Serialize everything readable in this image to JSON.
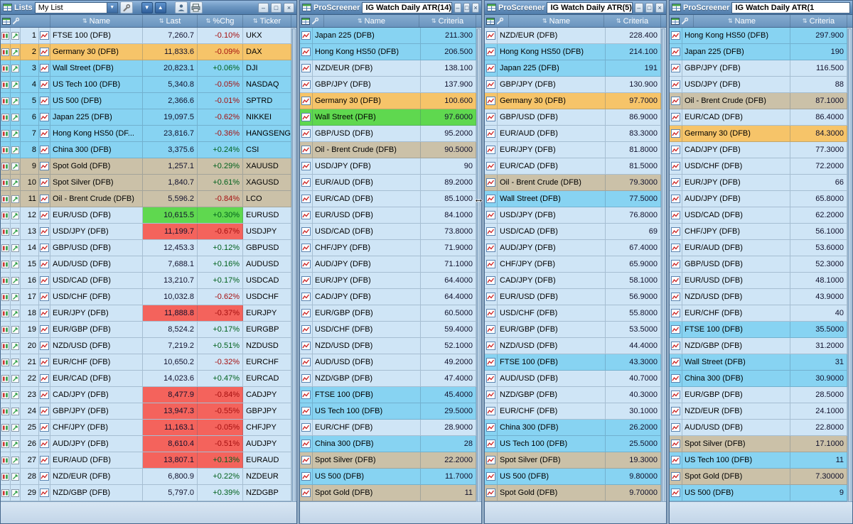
{
  "colors": {
    "idx": "#87d3f2",
    "fx": "#cfe5f6",
    "cm": "#cbc1a8",
    "sel": "#f6c469",
    "up": "#5fd84f",
    "down": "#f4635c",
    "pos": "#00611c",
    "neg": "#a50f0f"
  },
  "icons": {
    "chevron-down": "▼",
    "sort": "⇅",
    "arrow-down": "▼",
    "arrow-up": "▲",
    "minimize": "–",
    "maximize": "□",
    "close": "×",
    "resize-cursor": "↔"
  },
  "lists": {
    "title": "Lists",
    "selected_list": "My List",
    "columns": [
      "Name",
      "Last",
      "%Chg",
      "Ticker"
    ],
    "rows": [
      {
        "n": "1",
        "name": "FTSE 100 (DFB)",
        "last": "7,260.7",
        "chg": "-0.10%",
        "tick": "UKX",
        "cat": "fx",
        "fl": ""
      },
      {
        "n": "2",
        "name": "Germany 30 (DFB)",
        "last": "11,833.6",
        "chg": "-0.09%",
        "tick": "DAX",
        "cat": "sel",
        "fl": ""
      },
      {
        "n": "3",
        "name": "Wall Street (DFB)",
        "last": "20,823.1",
        "chg": "+0.06%",
        "tick": "DJI",
        "cat": "idx",
        "fl": ""
      },
      {
        "n": "4",
        "name": "US Tech 100 (DFB)",
        "last": "5,340.8",
        "chg": "-0.05%",
        "tick": "NASDAQ",
        "cat": "idx",
        "fl": ""
      },
      {
        "n": "5",
        "name": "US 500 (DFB)",
        "last": "2,366.6",
        "chg": "-0.01%",
        "tick": "SPTRD",
        "cat": "idx",
        "fl": ""
      },
      {
        "n": "6",
        "name": "Japan 225 (DFB)",
        "last": "19,097.5",
        "chg": "-0.62%",
        "tick": "NIKKEI",
        "cat": "idx",
        "fl": ""
      },
      {
        "n": "7",
        "name": "Hong Kong HS50 (DF...",
        "last": "23,816.7",
        "chg": "-0.36%",
        "tick": "HANGSENG",
        "cat": "idx",
        "fl": ""
      },
      {
        "n": "8",
        "name": "China 300 (DFB)",
        "last": "3,375.6",
        "chg": "+0.24%",
        "tick": "CSI",
        "cat": "idx",
        "fl": ""
      },
      {
        "n": "9",
        "name": "Spot Gold (DFB)",
        "last": "1,257.1",
        "chg": "+0.29%",
        "tick": "XAUUSD",
        "cat": "cm",
        "fl": ""
      },
      {
        "n": "10",
        "name": "Spot Silver (DFB)",
        "last": "1,840.7",
        "chg": "+0.61%",
        "tick": "XAGUSD",
        "cat": "cm",
        "fl": ""
      },
      {
        "n": "11",
        "name": "Oil - Brent Crude (DFB)",
        "last": "5,596.2",
        "chg": "-0.84%",
        "tick": "LCO",
        "cat": "cm",
        "fl": ""
      },
      {
        "n": "12",
        "name": "EUR/USD (DFB)",
        "last": "10,615.5",
        "chg": "+0.30%",
        "tick": "EURUSD",
        "cat": "fx",
        "fl": "up"
      },
      {
        "n": "13",
        "name": "USD/JPY (DFB)",
        "last": "11,199.7",
        "chg": "-0.67%",
        "tick": "USDJPY",
        "cat": "fx",
        "fl": "down"
      },
      {
        "n": "14",
        "name": "GBP/USD (DFB)",
        "last": "12,453.3",
        "chg": "+0.12%",
        "tick": "GBPUSD",
        "cat": "fx",
        "fl": ""
      },
      {
        "n": "15",
        "name": "AUD/USD (DFB)",
        "last": "7,688.1",
        "chg": "+0.16%",
        "tick": "AUDUSD",
        "cat": "fx",
        "fl": ""
      },
      {
        "n": "16",
        "name": "USD/CAD (DFB)",
        "last": "13,210.7",
        "chg": "+0.17%",
        "tick": "USDCAD",
        "cat": "fx",
        "fl": ""
      },
      {
        "n": "17",
        "name": "USD/CHF (DFB)",
        "last": "10,032.8",
        "chg": "-0.62%",
        "tick": "USDCHF",
        "cat": "fx",
        "fl": ""
      },
      {
        "n": "18",
        "name": "EUR/JPY (DFB)",
        "last": "11,888.8",
        "chg": "-0.37%",
        "tick": "EURJPY",
        "cat": "fx",
        "fl": "down"
      },
      {
        "n": "19",
        "name": "EUR/GBP (DFB)",
        "last": "8,524.2",
        "chg": "+0.17%",
        "tick": "EURGBP",
        "cat": "fx",
        "fl": ""
      },
      {
        "n": "20",
        "name": "NZD/USD (DFB)",
        "last": "7,219.2",
        "chg": "+0.51%",
        "tick": "NZDUSD",
        "cat": "fx",
        "fl": ""
      },
      {
        "n": "21",
        "name": "EUR/CHF (DFB)",
        "last": "10,650.2",
        "chg": "-0.32%",
        "tick": "EURCHF",
        "cat": "fx",
        "fl": ""
      },
      {
        "n": "22",
        "name": "EUR/CAD (DFB)",
        "last": "14,023.6",
        "chg": "+0.47%",
        "tick": "EURCAD",
        "cat": "fx",
        "fl": ""
      },
      {
        "n": "23",
        "name": "CAD/JPY (DFB)",
        "last": "8,477.9",
        "chg": "-0.84%",
        "tick": "CADJPY",
        "cat": "fx",
        "fl": "down"
      },
      {
        "n": "24",
        "name": "GBP/JPY (DFB)",
        "last": "13,947.3",
        "chg": "-0.55%",
        "tick": "GBPJPY",
        "cat": "fx",
        "fl": "down"
      },
      {
        "n": "25",
        "name": "CHF/JPY (DFB)",
        "last": "11,163.1",
        "chg": "-0.05%",
        "tick": "CHFJPY",
        "cat": "fx",
        "fl": "down"
      },
      {
        "n": "26",
        "name": "AUD/JPY (DFB)",
        "last": "8,610.4",
        "chg": "-0.51%",
        "tick": "AUDJPY",
        "cat": "fx",
        "fl": "down"
      },
      {
        "n": "27",
        "name": "EUR/AUD (DFB)",
        "last": "13,807.1",
        "chg": "+0.13%",
        "tick": "EURAUD",
        "cat": "fx",
        "fl": "down"
      },
      {
        "n": "28",
        "name": "NZD/EUR (DFB)",
        "last": "6,800.9",
        "chg": "+0.22%",
        "tick": "NZDEUR",
        "cat": "fx",
        "fl": ""
      },
      {
        "n": "29",
        "name": "NZD/GBP (DFB)",
        "last": "5,797.0",
        "chg": "+0.39%",
        "tick": "NZDGBP",
        "cat": "fx",
        "fl": ""
      }
    ]
  },
  "screener_title": "ProScreener",
  "screener_columns": [
    "Name",
    "Criteria"
  ],
  "screeners": [
    {
      "name": "IG Watch Daily ATR(14)",
      "rows": [
        {
          "name": "Japan 225 (DFB)",
          "val": "211.300",
          "cat": "idx",
          "fl": ""
        },
        {
          "name": "Hong Kong HS50 (DFB)",
          "val": "206.500",
          "cat": "idx",
          "fl": ""
        },
        {
          "name": "NZD/EUR (DFB)",
          "val": "138.100",
          "cat": "fx",
          "fl": ""
        },
        {
          "name": "GBP/JPY (DFB)",
          "val": "137.900",
          "cat": "fx",
          "fl": ""
        },
        {
          "name": "Germany 30 (DFB)",
          "val": "100.600",
          "cat": "sel",
          "fl": ""
        },
        {
          "name": "Wall Street (DFB)",
          "val": "97.6000",
          "cat": "idx",
          "fl": "up"
        },
        {
          "name": "GBP/USD (DFB)",
          "val": "95.2000",
          "cat": "fx",
          "fl": ""
        },
        {
          "name": "Oil - Brent Crude (DFB)",
          "val": "90.5000",
          "cat": "cm",
          "fl": ""
        },
        {
          "name": "USD/JPY (DFB)",
          "val": "90",
          "cat": "fx",
          "fl": ""
        },
        {
          "name": "EUR/AUD (DFB)",
          "val": "89.2000",
          "cat": "fx",
          "fl": ""
        },
        {
          "name": "EUR/CAD (DFB)",
          "val": "85.1000",
          "cat": "fx",
          "fl": ""
        },
        {
          "name": "EUR/USD (DFB)",
          "val": "84.1000",
          "cat": "fx",
          "fl": ""
        },
        {
          "name": "USD/CAD (DFB)",
          "val": "73.8000",
          "cat": "fx",
          "fl": ""
        },
        {
          "name": "CHF/JPY (DFB)",
          "val": "71.9000",
          "cat": "fx",
          "fl": ""
        },
        {
          "name": "AUD/JPY (DFB)",
          "val": "71.1000",
          "cat": "fx",
          "fl": ""
        },
        {
          "name": "EUR/JPY (DFB)",
          "val": "64.4000",
          "cat": "fx",
          "fl": ""
        },
        {
          "name": "CAD/JPY (DFB)",
          "val": "64.4000",
          "cat": "fx",
          "fl": ""
        },
        {
          "name": "EUR/GBP (DFB)",
          "val": "60.5000",
          "cat": "fx",
          "fl": ""
        },
        {
          "name": "USD/CHF (DFB)",
          "val": "59.4000",
          "cat": "fx",
          "fl": ""
        },
        {
          "name": "NZD/USD (DFB)",
          "val": "52.1000",
          "cat": "fx",
          "fl": ""
        },
        {
          "name": "AUD/USD (DFB)",
          "val": "49.2000",
          "cat": "fx",
          "fl": ""
        },
        {
          "name": "NZD/GBP (DFB)",
          "val": "47.4000",
          "cat": "fx",
          "fl": ""
        },
        {
          "name": "FTSE 100 (DFB)",
          "val": "45.4000",
          "cat": "idx",
          "fl": ""
        },
        {
          "name": "US Tech 100 (DFB)",
          "val": "29.5000",
          "cat": "idx",
          "fl": ""
        },
        {
          "name": "EUR/CHF (DFB)",
          "val": "28.9000",
          "cat": "fx",
          "fl": ""
        },
        {
          "name": "China 300 (DFB)",
          "val": "28",
          "cat": "idx",
          "fl": ""
        },
        {
          "name": "Spot Silver (DFB)",
          "val": "22.2000",
          "cat": "cm",
          "fl": ""
        },
        {
          "name": "US 500 (DFB)",
          "val": "11.7000",
          "cat": "idx",
          "fl": ""
        },
        {
          "name": "Spot Gold (DFB)",
          "val": "11",
          "cat": "cm",
          "fl": ""
        }
      ]
    },
    {
      "name": "IG Watch Daily ATR(5)",
      "rows": [
        {
          "name": "NZD/EUR (DFB)",
          "val": "228.400",
          "cat": "fx",
          "fl": ""
        },
        {
          "name": "Hong Kong HS50 (DFB)",
          "val": "214.100",
          "cat": "idx",
          "fl": ""
        },
        {
          "name": "Japan 225 (DFB)",
          "val": "191",
          "cat": "idx",
          "fl": ""
        },
        {
          "name": "GBP/JPY (DFB)",
          "val": "130.900",
          "cat": "fx",
          "fl": ""
        },
        {
          "name": "Germany 30 (DFB)",
          "val": "97.7000",
          "cat": "sel",
          "fl": ""
        },
        {
          "name": "GBP/USD (DFB)",
          "val": "86.9000",
          "cat": "fx",
          "fl": ""
        },
        {
          "name": "EUR/AUD (DFB)",
          "val": "83.3000",
          "cat": "fx",
          "fl": ""
        },
        {
          "name": "EUR/JPY (DFB)",
          "val": "81.8000",
          "cat": "fx",
          "fl": ""
        },
        {
          "name": "EUR/CAD (DFB)",
          "val": "81.5000",
          "cat": "fx",
          "fl": ""
        },
        {
          "name": "Oil - Brent Crude (DFB)",
          "val": "79.3000",
          "cat": "cm",
          "fl": ""
        },
        {
          "name": "Wall Street (DFB)",
          "val": "77.5000",
          "cat": "idx",
          "fl": ""
        },
        {
          "name": "USD/JPY (DFB)",
          "val": "76.8000",
          "cat": "fx",
          "fl": ""
        },
        {
          "name": "USD/CAD (DFB)",
          "val": "69",
          "cat": "fx",
          "fl": ""
        },
        {
          "name": "AUD/JPY (DFB)",
          "val": "67.4000",
          "cat": "fx",
          "fl": ""
        },
        {
          "name": "CHF/JPY (DFB)",
          "val": "65.9000",
          "cat": "fx",
          "fl": ""
        },
        {
          "name": "CAD/JPY (DFB)",
          "val": "58.1000",
          "cat": "fx",
          "fl": ""
        },
        {
          "name": "EUR/USD (DFB)",
          "val": "56.9000",
          "cat": "fx",
          "fl": ""
        },
        {
          "name": "USD/CHF (DFB)",
          "val": "55.8000",
          "cat": "fx",
          "fl": ""
        },
        {
          "name": "EUR/GBP (DFB)",
          "val": "53.5000",
          "cat": "fx",
          "fl": ""
        },
        {
          "name": "NZD/USD (DFB)",
          "val": "44.4000",
          "cat": "fx",
          "fl": ""
        },
        {
          "name": "FTSE 100 (DFB)",
          "val": "43.3000",
          "cat": "idx",
          "fl": ""
        },
        {
          "name": "AUD/USD (DFB)",
          "val": "40.7000",
          "cat": "fx",
          "fl": ""
        },
        {
          "name": "NZD/GBP (DFB)",
          "val": "40.3000",
          "cat": "fx",
          "fl": ""
        },
        {
          "name": "EUR/CHF (DFB)",
          "val": "30.1000",
          "cat": "fx",
          "fl": ""
        },
        {
          "name": "China 300 (DFB)",
          "val": "26.2000",
          "cat": "idx",
          "fl": ""
        },
        {
          "name": "US Tech 100 (DFB)",
          "val": "25.5000",
          "cat": "idx",
          "fl": ""
        },
        {
          "name": "Spot Silver (DFB)",
          "val": "19.3000",
          "cat": "cm",
          "fl": ""
        },
        {
          "name": "US 500 (DFB)",
          "val": "9.80000",
          "cat": "idx",
          "fl": ""
        },
        {
          "name": "Spot Gold (DFB)",
          "val": "9.70000",
          "cat": "cm",
          "fl": ""
        }
      ]
    },
    {
      "name": "IG Watch Daily ATR(1",
      "truncated": true,
      "rows": [
        {
          "name": "Hong Kong HS50 (DFB)",
          "val": "297.900",
          "cat": "idx",
          "fl": ""
        },
        {
          "name": "Japan 225 (DFB)",
          "val": "190",
          "cat": "idx",
          "fl": ""
        },
        {
          "name": "GBP/JPY (DFB)",
          "val": "116.500",
          "cat": "fx",
          "fl": ""
        },
        {
          "name": "USD/JPY (DFB)",
          "val": "88",
          "cat": "fx",
          "fl": ""
        },
        {
          "name": "Oil - Brent Crude (DFB)",
          "val": "87.1000",
          "cat": "cm",
          "fl": ""
        },
        {
          "name": "EUR/CAD (DFB)",
          "val": "86.4000",
          "cat": "fx",
          "fl": ""
        },
        {
          "name": "Germany 30 (DFB)",
          "val": "84.3000",
          "cat": "sel",
          "fl": ""
        },
        {
          "name": "CAD/JPY (DFB)",
          "val": "77.3000",
          "cat": "fx",
          "fl": ""
        },
        {
          "name": "USD/CHF (DFB)",
          "val": "72.2000",
          "cat": "fx",
          "fl": ""
        },
        {
          "name": "EUR/JPY (DFB)",
          "val": "66",
          "cat": "fx",
          "fl": ""
        },
        {
          "name": "AUD/JPY (DFB)",
          "val": "65.8000",
          "cat": "fx",
          "fl": ""
        },
        {
          "name": "USD/CAD (DFB)",
          "val": "62.2000",
          "cat": "fx",
          "fl": ""
        },
        {
          "name": "CHF/JPY (DFB)",
          "val": "56.1000",
          "cat": "fx",
          "fl": ""
        },
        {
          "name": "EUR/AUD (DFB)",
          "val": "53.6000",
          "cat": "fx",
          "fl": ""
        },
        {
          "name": "GBP/USD (DFB)",
          "val": "52.3000",
          "cat": "fx",
          "fl": ""
        },
        {
          "name": "EUR/USD (DFB)",
          "val": "48.1000",
          "cat": "fx",
          "fl": ""
        },
        {
          "name": "NZD/USD (DFB)",
          "val": "43.9000",
          "cat": "fx",
          "fl": ""
        },
        {
          "name": "EUR/CHF (DFB)",
          "val": "40",
          "cat": "fx",
          "fl": ""
        },
        {
          "name": "FTSE 100 (DFB)",
          "val": "35.5000",
          "cat": "idx",
          "fl": ""
        },
        {
          "name": "NZD/GBP (DFB)",
          "val": "31.2000",
          "cat": "fx",
          "fl": ""
        },
        {
          "name": "Wall Street (DFB)",
          "val": "31",
          "cat": "idx",
          "fl": ""
        },
        {
          "name": "China 300 (DFB)",
          "val": "30.9000",
          "cat": "idx",
          "fl": ""
        },
        {
          "name": "EUR/GBP (DFB)",
          "val": "28.5000",
          "cat": "fx",
          "fl": ""
        },
        {
          "name": "NZD/EUR (DFB)",
          "val": "24.1000",
          "cat": "fx",
          "fl": ""
        },
        {
          "name": "AUD/USD (DFB)",
          "val": "22.8000",
          "cat": "fx",
          "fl": ""
        },
        {
          "name": "Spot Silver (DFB)",
          "val": "17.1000",
          "cat": "cm",
          "fl": ""
        },
        {
          "name": "US Tech 100 (DFB)",
          "val": "11",
          "cat": "idx",
          "fl": ""
        },
        {
          "name": "Spot Gold (DFB)",
          "val": "7.30000",
          "cat": "cm",
          "fl": ""
        },
        {
          "name": "US 500 (DFB)",
          "val": "9",
          "cat": "idx",
          "fl": ""
        }
      ]
    }
  ]
}
